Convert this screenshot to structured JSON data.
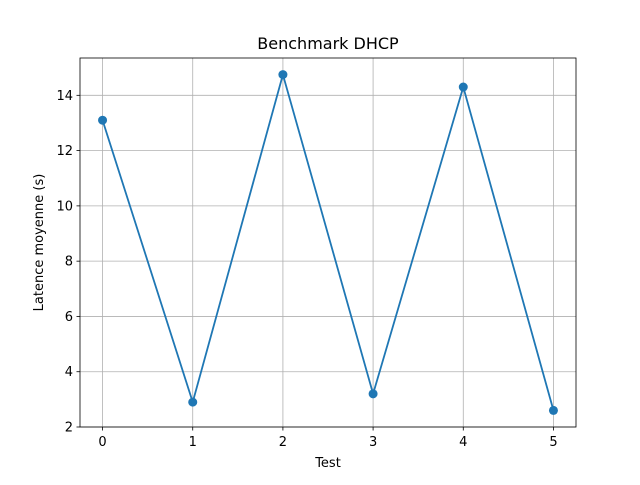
{
  "chart_data": {
    "type": "line",
    "title": "Benchmark DHCP",
    "xlabel": "Test",
    "ylabel": "Latence moyenne (s)",
    "x": [
      0,
      1,
      2,
      3,
      4,
      5
    ],
    "series": [
      {
        "values": [
          13.1,
          2.9,
          14.75,
          3.2,
          14.3,
          2.6
        ]
      }
    ],
    "xlim": [
      -0.25,
      5.25
    ],
    "ylim": [
      2.0,
      15.35
    ],
    "xticks": [
      0,
      1,
      2,
      3,
      4,
      5
    ],
    "yticks": [
      2,
      4,
      6,
      8,
      10,
      12,
      14
    ],
    "grid": true,
    "marker": "circle",
    "colors": {
      "line": "#1f77b4",
      "grid": "#b0b0b0",
      "axes": "#000000"
    }
  }
}
